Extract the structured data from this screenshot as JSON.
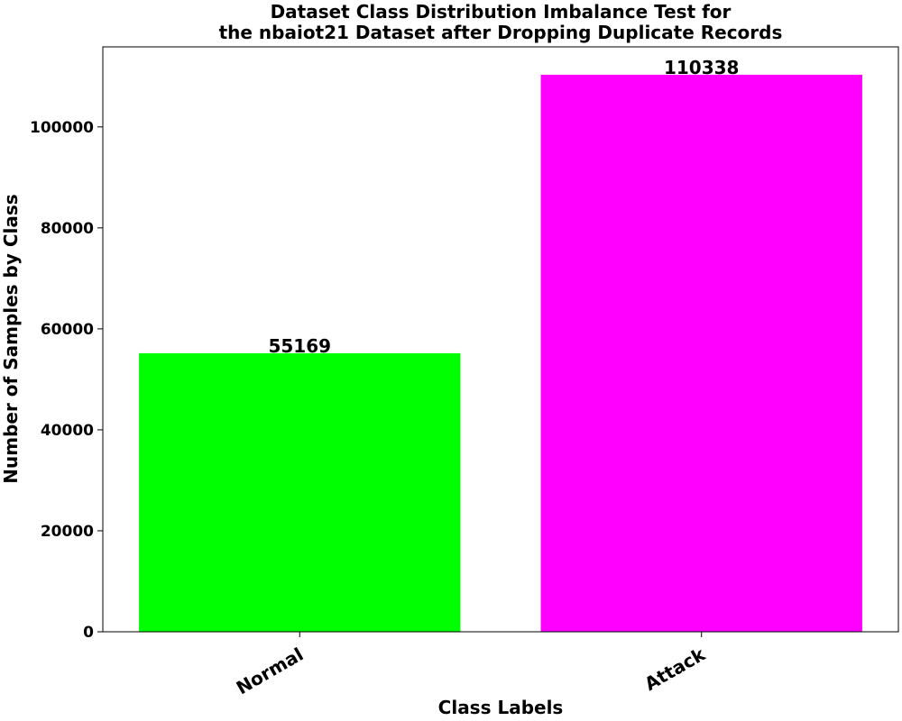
{
  "chart_data": {
    "type": "bar",
    "title_lines": [
      "Dataset Class Distribution Imbalance Test for",
      "the nbaiot21 Dataset after Dropping Duplicate Records"
    ],
    "xlabel": "Class Labels",
    "ylabel": "Number of Samples by Class",
    "categories": [
      "Normal",
      "Attack"
    ],
    "values": [
      55169,
      110338
    ],
    "value_labels": [
      "55169",
      "110338"
    ],
    "colors": [
      "#00ff00",
      "#ff00ff"
    ],
    "ylim": [
      0,
      115855
    ],
    "yticks": [
      0,
      20000,
      40000,
      60000,
      80000,
      100000
    ],
    "ytick_labels": [
      "0",
      "20000",
      "40000",
      "60000",
      "80000",
      "100000"
    ],
    "grid": false,
    "legend": "none"
  }
}
